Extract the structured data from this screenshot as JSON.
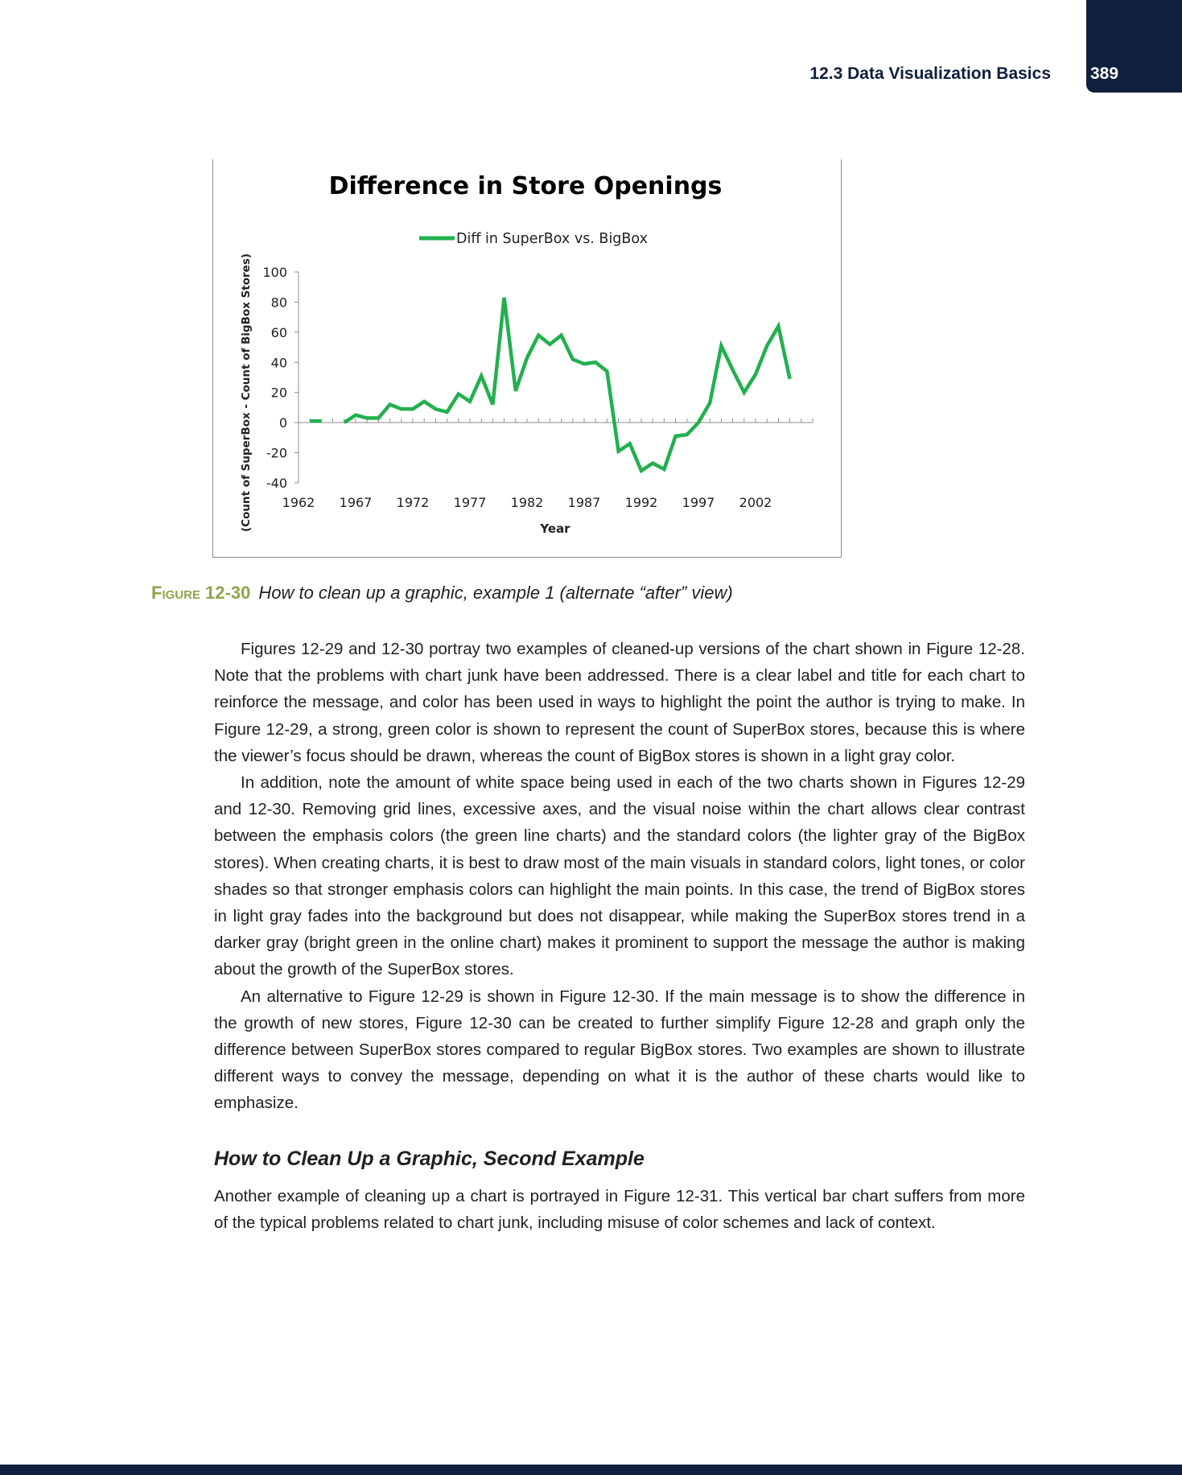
{
  "header": {
    "section_title": "12.3 Data Visualization Basics",
    "page_number": "389"
  },
  "figure": {
    "label": "Figure 12-30",
    "caption": "How to clean up a graphic, example 1 (alternate “after” view)"
  },
  "chart_data": {
    "type": "line",
    "title": "Difference in Store Openings",
    "xlabel": "Year",
    "ylabel": "(Count of SuperBox - Count of BigBox Stores)",
    "legend_position": "top",
    "grid": false,
    "color": "#22b04e",
    "ylim": [
      -40,
      100
    ],
    "yticks": [
      "100",
      "80",
      "60",
      "40",
      "20",
      "0",
      "-20",
      "-40"
    ],
    "xticks": [
      "1962",
      "1967",
      "1972",
      "1977",
      "1982",
      "1987",
      "1992",
      "1997",
      "2002"
    ],
    "series": [
      {
        "name": "Diff in SuperBox vs. BigBox",
        "x": [
          1963,
          1964,
          1966,
          1967,
          1968,
          1969,
          1970,
          1971,
          1972,
          1973,
          1974,
          1975,
          1976,
          1977,
          1978,
          1979,
          1980,
          1981,
          1982,
          1983,
          1984,
          1985,
          1986,
          1987,
          1988,
          1989,
          1990,
          1991,
          1992,
          1993,
          1994,
          1995,
          1996,
          1997,
          1998,
          1999,
          2000,
          2001,
          2002,
          2003,
          2004,
          2005
        ],
        "y": [
          1,
          1,
          0,
          5,
          3,
          3,
          12,
          9,
          9,
          14,
          9,
          7,
          19,
          14,
          31,
          12,
          83,
          21,
          43,
          58,
          52,
          58,
          42,
          39,
          40,
          34,
          -19,
          -14,
          -32,
          -27,
          -31,
          -9,
          -8,
          0,
          13,
          51,
          35,
          20,
          32,
          51,
          64,
          29
        ]
      }
    ]
  },
  "body": {
    "p1": "Figures 12-29 and 12-30 portray two examples of cleaned-up versions of the chart shown in Figure 12-28. Note that the problems with chart junk have been addressed. There is a clear label and title for each chart to reinforce the message, and color has been used in ways to highlight the point the author is trying to make. In Figure 12-29, a strong, green color is shown to represent the count of SuperBox stores, because this is where the viewer’s focus should be drawn, whereas the count of BigBox stores is shown in a light gray color.",
    "p2": "In addition, note the amount of white space being used in each of the two charts shown in Figures 12-29 and 12-30. Removing grid lines, excessive axes, and the visual noise within the chart allows clear contrast between the emphasis colors (the green line charts) and the standard colors (the lighter gray of the BigBox stores). When creating charts, it is best to draw most of the main visuals in standard colors, light tones, or color shades so that stronger emphasis colors can highlight the main points. In this case, the trend of BigBox stores in light gray fades into the background but does not disappear, while making the SuperBox stores trend in a darker gray (bright green in the online chart) makes it prominent to support the message the author is making about the growth of the SuperBox stores.",
    "p3": "An alternative to Figure 12-29 is shown in Figure 12-30. If the main message is to show the difference in the growth of new stores, Figure 12-30 can be created to further simplify Figure 12-28 and graph only the difference between SuperBox stores compared to regular BigBox stores. Two examples are shown to illustrate different ways to convey the message, depending on what it is the author of these charts would like to emphasize.",
    "heading": "How to Clean Up a Graphic, Second Example",
    "p4": "Another example of cleaning up a chart is portrayed in Figure 12-31. This vertical bar chart suffers from more of the typical problems related to chart junk, including misuse of color schemes and lack of context."
  }
}
